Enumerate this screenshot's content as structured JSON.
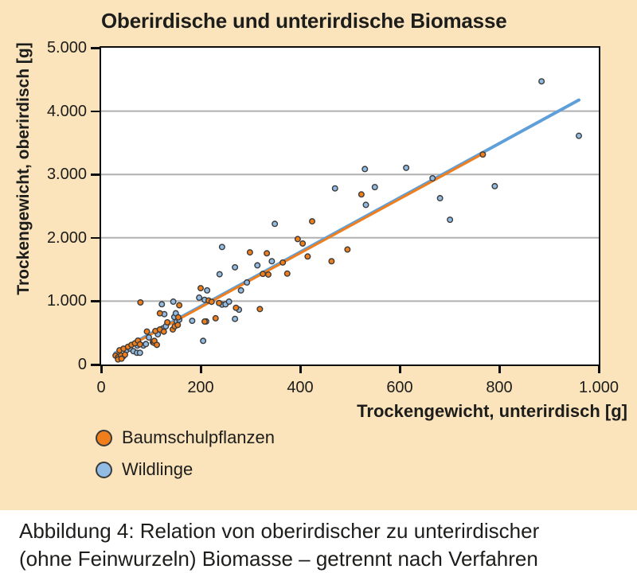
{
  "title": "Oberirdische und unterirdische Biomasse",
  "colors": {
    "panel_background": "#fbe3bb",
    "plot_background": "#ffffff",
    "axis": "#0d0d0d",
    "gridline": "#b0b0b0",
    "marker_outline": "#3b3b3b",
    "baumschulpflanzen_fill": "#f07e1a",
    "baumschulpflanzen_line": "#ef7f1e",
    "wildlinge_fill": "#93bce4",
    "wildlinge_line": "#5f9fd9",
    "text": "#1d1d1b"
  },
  "chart_data": {
    "type": "scatter",
    "title": "Oberirdische und unterirdische Biomasse",
    "xlabel": "Trockengewicht, unterirdisch [g]",
    "ylabel": "Trockengewicht, oberirdisch [g]",
    "xlim": [
      0,
      1000
    ],
    "ylim": [
      0,
      5000
    ],
    "x_ticks": {
      "values": [
        0,
        200,
        400,
        600,
        800,
        1000
      ],
      "labels": [
        "0",
        "200",
        "400",
        "600",
        "800",
        "1.000"
      ]
    },
    "y_ticks": {
      "values": [
        0,
        1000,
        2000,
        3000,
        4000,
        5000
      ],
      "labels": [
        "0",
        "1.000",
        "2.000",
        "3.000",
        "4.000",
        "5.000"
      ]
    },
    "grid": "horizontal-only",
    "grid_values": [
      1000,
      2000,
      3000,
      4000
    ],
    "legend_position": "below-left",
    "series": [
      {
        "name": "Wildlinge",
        "marker_fill": "#93bce4",
        "trend_color": "#5f9fd9",
        "trend_width": 4,
        "trendline": {
          "x1": 28,
          "y1": 180,
          "x2": 960,
          "y2": 4175
        },
        "points": [
          [
            44,
            126
          ],
          [
            51,
            226
          ],
          [
            58,
            251
          ],
          [
            65,
            210
          ],
          [
            72,
            185
          ],
          [
            73,
            300
          ],
          [
            78,
            185
          ],
          [
            85,
            300
          ],
          [
            90,
            323
          ],
          [
            96,
            427
          ],
          [
            114,
            477
          ],
          [
            122,
            951
          ],
          [
            124,
            569
          ],
          [
            127,
            795
          ],
          [
            130,
            603
          ],
          [
            145,
            992
          ],
          [
            147,
            750
          ],
          [
            150,
            808
          ],
          [
            152,
            678
          ],
          [
            157,
            707
          ],
          [
            183,
            690
          ],
          [
            197,
            1055
          ],
          [
            205,
            373
          ],
          [
            208,
            1021
          ],
          [
            211,
            680
          ],
          [
            213,
            1170
          ],
          [
            238,
            1425
          ],
          [
            243,
            945
          ],
          [
            243,
            1855
          ],
          [
            250,
            950
          ],
          [
            257,
            992
          ],
          [
            269,
            720
          ],
          [
            269,
            1535
          ],
          [
            277,
            865
          ],
          [
            281,
            1170
          ],
          [
            293,
            1295
          ],
          [
            314,
            1565
          ],
          [
            343,
            1630
          ],
          [
            349,
            2220
          ],
          [
            470,
            2780
          ],
          [
            530,
            3085
          ],
          [
            532,
            2520
          ],
          [
            550,
            2800
          ],
          [
            613,
            3105
          ],
          [
            666,
            2940
          ],
          [
            681,
            2625
          ],
          [
            701,
            2285
          ],
          [
            791,
            2815
          ],
          [
            885,
            4470
          ],
          [
            960,
            3610
          ]
        ]
      },
      {
        "name": "Baumschulpflanzen",
        "marker_fill": "#f07e1a",
        "trend_color": "#ef7f1e",
        "trend_width": 3,
        "trendline": {
          "x1": 30,
          "y1": 175,
          "x2": 770,
          "y2": 3340
        },
        "points": [
          [
            29,
            140
          ],
          [
            34,
            113
          ],
          [
            34,
            80
          ],
          [
            40,
            142
          ],
          [
            41,
            92
          ],
          [
            37,
            225
          ],
          [
            45,
            250
          ],
          [
            48,
            155
          ],
          [
            54,
            280
          ],
          [
            61,
            310
          ],
          [
            68,
            335
          ],
          [
            74,
            377
          ],
          [
            78,
            318
          ],
          [
            92,
            520
          ],
          [
            104,
            352
          ],
          [
            106,
            343
          ],
          [
            107,
            373
          ],
          [
            109,
            528
          ],
          [
            112,
            310
          ],
          [
            118,
            553
          ],
          [
            126,
            519
          ],
          [
            133,
            666
          ],
          [
            144,
            553
          ],
          [
            148,
            603
          ],
          [
            154,
            624
          ],
          [
            157,
            935
          ],
          [
            79,
            980
          ],
          [
            118,
            808
          ],
          [
            155,
            745
          ],
          [
            208,
            678
          ],
          [
            216,
            1010
          ],
          [
            222,
            990
          ],
          [
            230,
            730
          ],
          [
            237,
            970
          ],
          [
            271,
            895
          ],
          [
            200,
            1205
          ],
          [
            299,
            1770
          ],
          [
            319,
            875
          ],
          [
            325,
            1430
          ],
          [
            336,
            1420
          ],
          [
            333,
            1755
          ],
          [
            365,
            1610
          ],
          [
            374,
            1435
          ],
          [
            395,
            1980
          ],
          [
            405,
            1910
          ],
          [
            415,
            1705
          ],
          [
            424,
            2260
          ],
          [
            463,
            1630
          ],
          [
            495,
            1815
          ],
          [
            523,
            2685
          ],
          [
            767,
            3315
          ]
        ]
      }
    ]
  },
  "legend": {
    "items": [
      {
        "label": "Baumschulpflanzen",
        "color": "#f07e1a"
      },
      {
        "label": "Wildlinge",
        "color": "#93bce4"
      }
    ]
  },
  "caption": {
    "line1": "Abbildung 4: Relation von oberirdischer zu unterirdischer",
    "line2": "(ohne Feinwurzeln) Biomasse – getrennt nach Verfahren"
  }
}
